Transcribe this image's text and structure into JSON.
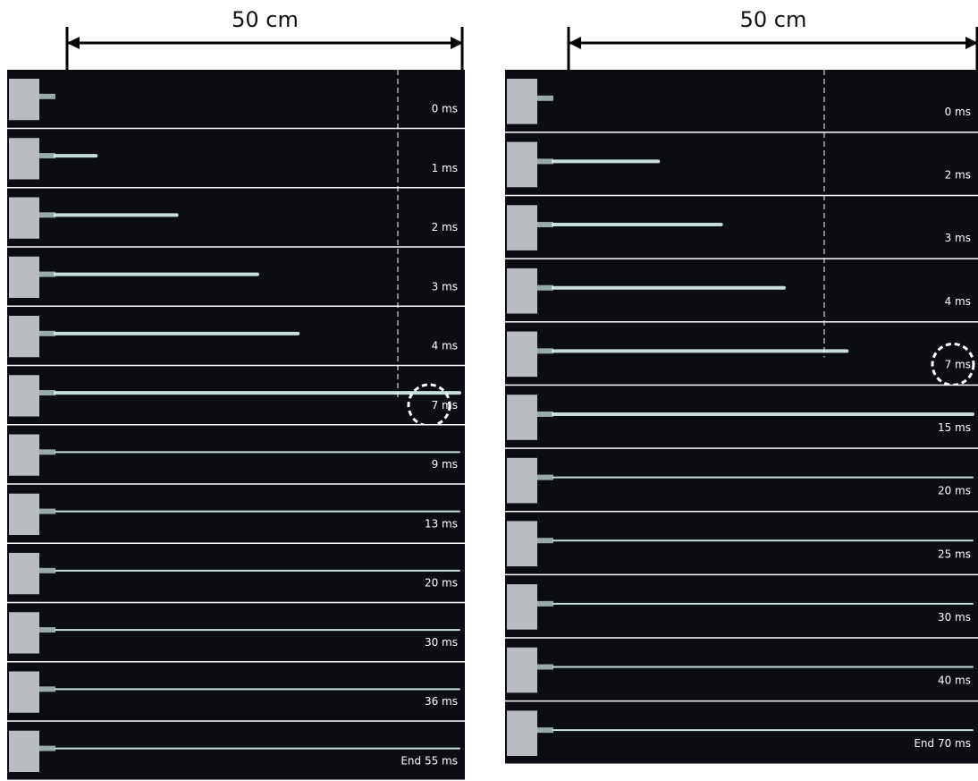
{
  "panels": [
    {
      "scale_label": "50 cm",
      "frames": [
        {
          "label": "0 ms"
        },
        {
          "label": "1 ms"
        },
        {
          "label": "2 ms"
        },
        {
          "label": "3 ms"
        },
        {
          "label": "4 ms"
        },
        {
          "label": "7 ms"
        },
        {
          "label": "9 ms"
        },
        {
          "label": "13 ms"
        },
        {
          "label": "20 ms"
        },
        {
          "label": "30 ms"
        },
        {
          "label": "36 ms"
        },
        {
          "label": "End 55 ms"
        }
      ]
    },
    {
      "scale_label": "50 cm",
      "frames": [
        {
          "label": "0 ms"
        },
        {
          "label": "2 ms"
        },
        {
          "label": "3 ms"
        },
        {
          "label": "4 ms"
        },
        {
          "label": "7 ms"
        },
        {
          "label": "15 ms"
        },
        {
          "label": "20 ms"
        },
        {
          "label": "25 ms"
        },
        {
          "label": "30 ms"
        },
        {
          "label": "40 ms"
        },
        {
          "label": "End 70 ms"
        }
      ]
    }
  ]
}
